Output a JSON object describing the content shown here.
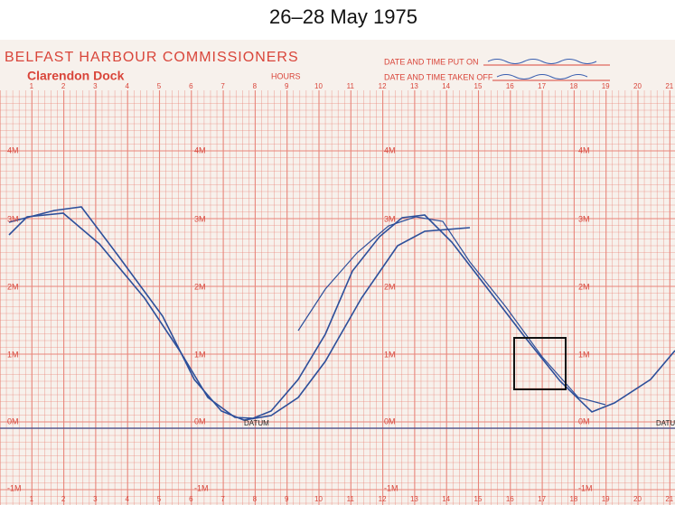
{
  "title": "26–28 May 1975",
  "header": {
    "org": "BELFAST HARBOUR COMMISSIONERS",
    "place": "Clarendon Dock",
    "hours": "HOURS",
    "put_on": "DATE AND TIME PUT ON",
    "taken_off": "DATE AND TIME TAKEN OFF"
  },
  "hour_labels": [
    "1",
    "2",
    "3",
    "4",
    "5",
    "6",
    "7",
    "8",
    "9",
    "10",
    "11",
    "12",
    "13",
    "14",
    "15",
    "16",
    "17",
    "18",
    "19",
    "20",
    "21"
  ],
  "level_labels": [
    "4M",
    "3M",
    "2M",
    "1M",
    "0M",
    "-1M"
  ],
  "datum": "DATUM"
}
